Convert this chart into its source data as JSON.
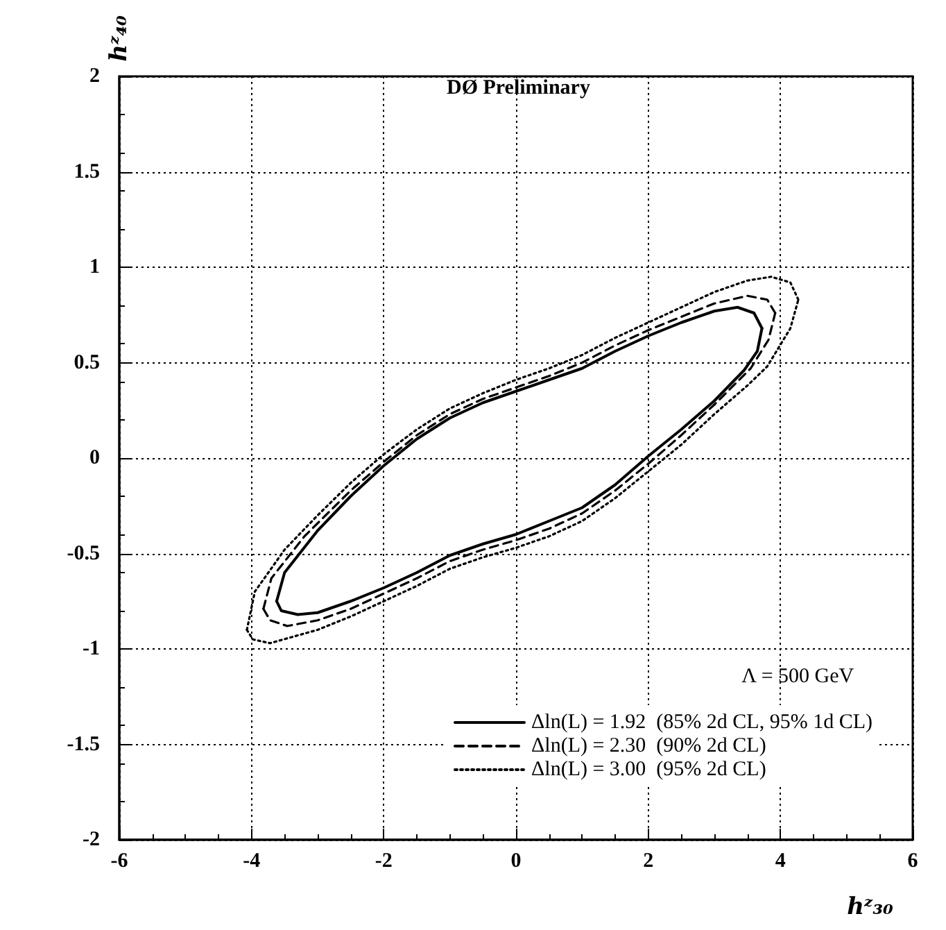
{
  "chart_data": {
    "type": "line",
    "xlabel": "hᶻ₃₀",
    "ylabel": "hᶻ₄₀",
    "legend_title": "Λ = 500 GeV",
    "annotations": [
      "DØ Preliminary"
    ],
    "xlim": [
      -6,
      6
    ],
    "xticks": [
      -6,
      -4,
      -2,
      0,
      2,
      4,
      6
    ],
    "ylim": [
      -2,
      2
    ],
    "yticks": [
      -2,
      -1.5,
      -1,
      -0.5,
      0,
      0.5,
      1,
      1.5,
      2
    ],
    "grid": true,
    "legend": "bottom right",
    "marker": "none",
    "series": [
      {
        "name": "Δln(L) = 1.92  (85% 2d CL, 95% 1d CL)",
        "color": "#000000",
        "line_style": "solid",
        "x": [
          -3.62,
          -3.5,
          -3,
          -2.5,
          -2,
          -1.5,
          -1,
          -0.5,
          0,
          0.5,
          1,
          1.5,
          2,
          2.5,
          3,
          3.35,
          3.6,
          3.72
        ],
        "values": [
          -0.75,
          -0.6,
          -0.38,
          -0.2,
          -0.04,
          0.1,
          0.21,
          0.29,
          0.35,
          0.41,
          0.47,
          0.56,
          0.64,
          0.71,
          0.77,
          0.79,
          0.76,
          0.68
        ]
      },
      {
        "color": "#000000",
        "line_style": "solid",
        "x": [
          -3.62,
          -3.55,
          -3.3,
          -3,
          -2.5,
          -2,
          -1.5,
          -1,
          -0.5,
          0,
          0.5,
          1,
          1.5,
          2,
          2.5,
          3,
          3.45,
          3.65,
          3.72
        ],
        "values": [
          -0.75,
          -0.8,
          -0.82,
          -0.81,
          -0.75,
          -0.68,
          -0.6,
          -0.51,
          -0.45,
          -0.4,
          -0.33,
          -0.26,
          -0.14,
          0.01,
          0.15,
          0.3,
          0.46,
          0.56,
          0.68
        ]
      },
      {
        "name": "Δln(L) = 2.30  (90% 2d CL)",
        "color": "#000000",
        "line_style": "dashed",
        "x": [
          -3.82,
          -3.7,
          -3.2,
          -2.5,
          -2,
          -1.5,
          -1,
          -0.5,
          0,
          0.5,
          1,
          1.5,
          2,
          2.5,
          3,
          3.5,
          3.8,
          3.92
        ],
        "values": [
          -0.79,
          -0.63,
          -0.41,
          -0.17,
          -0.02,
          0.12,
          0.23,
          0.31,
          0.37,
          0.43,
          0.5,
          0.59,
          0.67,
          0.74,
          0.81,
          0.85,
          0.83,
          0.76
        ]
      },
      {
        "color": "#000000",
        "line_style": "dashed",
        "x": [
          -3.82,
          -3.72,
          -3.46,
          -3,
          -2.5,
          -2,
          -1.5,
          -1,
          -0.5,
          0,
          0.5,
          1,
          1.5,
          2,
          2.5,
          3,
          3.55,
          3.82,
          3.92
        ],
        "values": [
          -0.79,
          -0.85,
          -0.88,
          -0.85,
          -0.79,
          -0.71,
          -0.63,
          -0.54,
          -0.48,
          -0.43,
          -0.37,
          -0.29,
          -0.17,
          -0.03,
          0.12,
          0.28,
          0.47,
          0.62,
          0.76
        ]
      },
      {
        "name": "Δln(L) = 3.00  (95% 2d CL)",
        "color": "#000000",
        "line_style": "dotted",
        "x": [
          -4.07,
          -3.95,
          -3.5,
          -3,
          -2.5,
          -2,
          -1.5,
          -1,
          -0.5,
          0,
          0.5,
          1,
          1.5,
          2,
          2.5,
          3,
          3.5,
          3.86,
          4.15,
          4.27
        ],
        "values": [
          -0.9,
          -0.7,
          -0.48,
          -0.3,
          -0.13,
          0.02,
          0.15,
          0.26,
          0.34,
          0.41,
          0.47,
          0.54,
          0.63,
          0.71,
          0.79,
          0.87,
          0.93,
          0.95,
          0.92,
          0.83
        ]
      },
      {
        "color": "#000000",
        "line_style": "dotted",
        "x": [
          -4.07,
          -3.98,
          -3.72,
          -3,
          -2.5,
          -2,
          -1.5,
          -1,
          -0.5,
          0,
          0.5,
          1,
          1.5,
          2,
          2.5,
          3,
          3.5,
          3.8,
          4.15,
          4.27
        ],
        "values": [
          -0.9,
          -0.95,
          -0.97,
          -0.9,
          -0.83,
          -0.75,
          -0.67,
          -0.58,
          -0.52,
          -0.47,
          -0.41,
          -0.33,
          -0.21,
          -0.07,
          0.07,
          0.23,
          0.38,
          0.48,
          0.68,
          0.83
        ]
      }
    ]
  }
}
